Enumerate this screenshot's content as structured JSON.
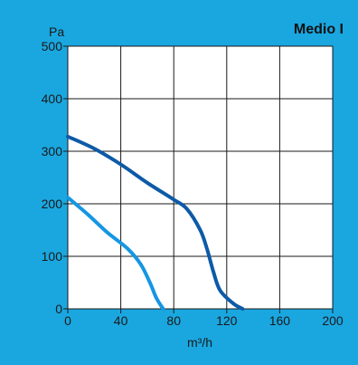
{
  "colors": {
    "background": "#1aa7e0",
    "plot_background": "#ffffff",
    "grid": "#1a1a1a",
    "series_1": "#0d5aa7",
    "series_2": "#1596e3"
  },
  "chart_data": {
    "type": "line",
    "title": "Medio I",
    "xlabel": "m³/h",
    "ylabel": "Pa",
    "xlim": [
      0,
      200
    ],
    "ylim": [
      0,
      500
    ],
    "xticks": [
      "0",
      "40",
      "80",
      "120",
      "160",
      "200"
    ],
    "yticks": [
      "0",
      "100",
      "200",
      "300",
      "400",
      "500"
    ],
    "grid": true,
    "series": [
      {
        "x": [
          0,
          20,
          40,
          60,
          80,
          90,
          100,
          105,
          110,
          115,
          125,
          132
        ],
        "y": [
          328,
          305,
          275,
          240,
          208,
          190,
          150,
          115,
          70,
          35,
          10,
          0
        ]
      },
      {
        "x": [
          0,
          15,
          30,
          45,
          55,
          62,
          67,
          72
        ],
        "y": [
          212,
          180,
          145,
          115,
          85,
          50,
          20,
          0
        ]
      }
    ]
  }
}
